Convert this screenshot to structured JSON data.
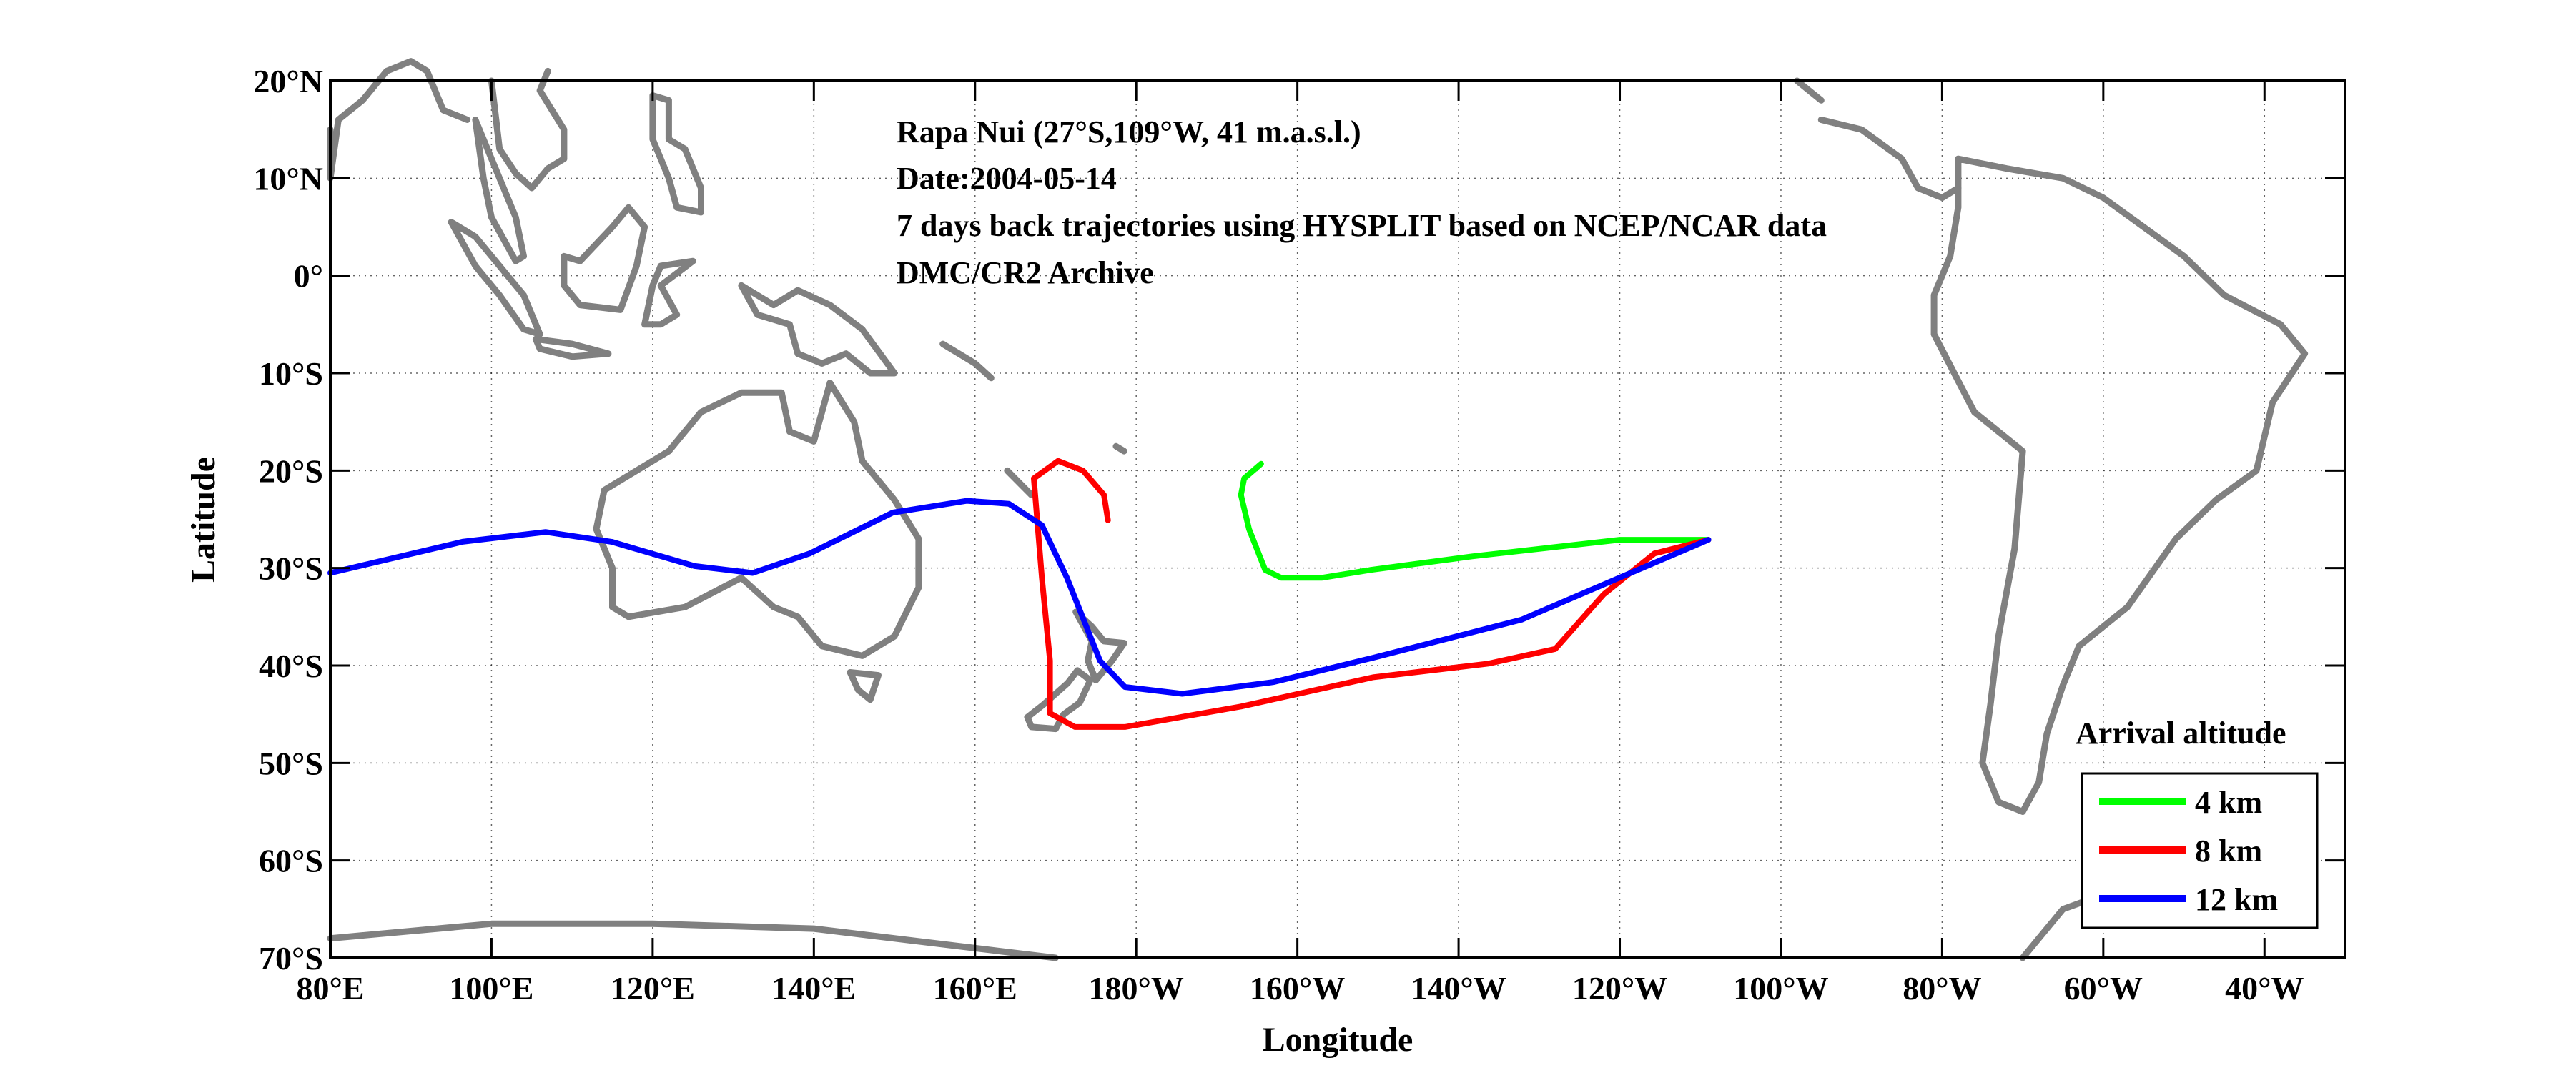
{
  "chart_data": {
    "type": "line",
    "title_lines": [
      "Rapa Nui (27°S,109°W, 41 m.a.s.l.)",
      "Date:2004-05-14",
      "7 days back trajectories using HYSPLIT based on NCEP/NCAR data",
      "DMC/CR2 Archive"
    ],
    "xlabel": "Longitude",
    "ylabel": "Latitude",
    "xlim_deg_east": [
      80,
      330
    ],
    "ylim": [
      -70,
      20
    ],
    "grid": true,
    "x_ticks": [
      {
        "value": 80,
        "label": "80°E"
      },
      {
        "value": 100,
        "label": "100°E"
      },
      {
        "value": 120,
        "label": "120°E"
      },
      {
        "value": 140,
        "label": "140°E"
      },
      {
        "value": 160,
        "label": "160°E"
      },
      {
        "value": 180,
        "label": "180°W"
      },
      {
        "value": 200,
        "label": "160°W"
      },
      {
        "value": 220,
        "label": "140°W"
      },
      {
        "value": 240,
        "label": "120°W"
      },
      {
        "value": 260,
        "label": "100°W"
      },
      {
        "value": 280,
        "label": "80°W"
      },
      {
        "value": 300,
        "label": "60°W"
      },
      {
        "value": 320,
        "label": "40°W"
      }
    ],
    "y_ticks": [
      {
        "value": 20,
        "label": "20°N"
      },
      {
        "value": 10,
        "label": "10°N"
      },
      {
        "value": 0,
        "label": "0°"
      },
      {
        "value": -10,
        "label": "10°S"
      },
      {
        "value": -20,
        "label": "20°S"
      },
      {
        "value": -30,
        "label": "30°S"
      },
      {
        "value": -40,
        "label": "40°S"
      },
      {
        "value": -50,
        "label": "50°S"
      },
      {
        "value": -60,
        "label": "60°S"
      },
      {
        "value": -70,
        "label": "70°S"
      }
    ],
    "legend": {
      "title": "Arrival altitude",
      "placement": "bottom-right"
    },
    "series": [
      {
        "name": "4 km",
        "color": "#00ff00",
        "lon": [
          251,
          240,
          221.7,
          209,
          203,
          198,
          196,
          194,
          193,
          193.4,
          195.5
        ],
        "lat": [
          -27.1,
          -27.1,
          -28.8,
          -30.2,
          -31,
          -31,
          -30.2,
          -26,
          -22.5,
          -20.8,
          -19.3
        ]
      },
      {
        "name": "8 km",
        "color": "#ff0000",
        "lon": [
          251,
          244.3,
          238,
          232,
          223.7,
          209.4,
          193,
          178.6,
          172.4,
          169.3,
          169.3,
          168.3,
          167.3,
          170.3,
          173.4,
          176,
          176.5
        ],
        "lat": [
          -27.1,
          -28.5,
          -32.7,
          -38.3,
          -39.8,
          -41.2,
          -44.2,
          -46.3,
          -46.3,
          -44.9,
          -39.5,
          -31,
          -20.8,
          -19,
          -20,
          -22.5,
          -25.1
        ]
      },
      {
        "name": "12 km",
        "color": "#0000ff",
        "lon": [
          251,
          242.2,
          227.8,
          209.4,
          197,
          185.7,
          178.6,
          175.5,
          171.4,
          168.3,
          164.2,
          159,
          149.8,
          139.5,
          132.4,
          125.2,
          114.9,
          106.7,
          96.4,
          80
        ],
        "lat": [
          -27.1,
          -30.2,
          -35.3,
          -39.2,
          -41.7,
          -42.9,
          -42.2,
          -39.5,
          -31,
          -25.6,
          -23.4,
          -23.1,
          -24.3,
          -28.5,
          -30.5,
          -29.8,
          -27.3,
          -26.3,
          -27.3,
          -30.5
        ]
      }
    ]
  }
}
